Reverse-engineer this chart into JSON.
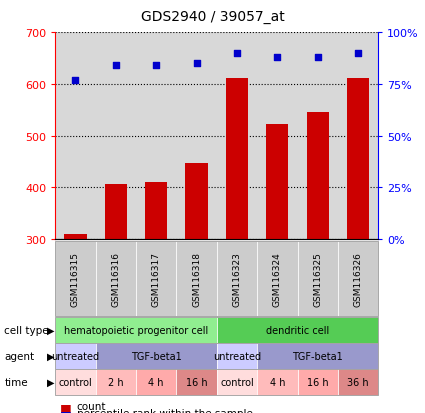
{
  "title": "GDS2940 / 39057_at",
  "samples": [
    "GSM116315",
    "GSM116316",
    "GSM116317",
    "GSM116318",
    "GSM116323",
    "GSM116324",
    "GSM116325",
    "GSM116326"
  ],
  "bar_values": [
    310,
    407,
    411,
    448,
    612,
    523,
    546,
    612
  ],
  "percentile_values": [
    77,
    84,
    84,
    85,
    90,
    88,
    88,
    90
  ],
  "ylim_left": [
    300,
    700
  ],
  "ylim_right": [
    0,
    100
  ],
  "yticks_left": [
    300,
    400,
    500,
    600,
    700
  ],
  "yticks_right": [
    0,
    25,
    50,
    75,
    100
  ],
  "bar_color": "#cc0000",
  "dot_color": "#0000cc",
  "bar_width": 0.55,
  "ax_facecolor": "#d8d8d8",
  "cell_type_row": {
    "label": "cell type",
    "groups": [
      {
        "text": "hematopoietic progenitor cell",
        "cols": [
          0,
          1,
          2,
          3
        ],
        "color": "#90ee90"
      },
      {
        "text": "dendritic cell",
        "cols": [
          4,
          5,
          6,
          7
        ],
        "color": "#55cc55"
      }
    ]
  },
  "agent_row": {
    "label": "agent",
    "groups": [
      {
        "text": "untreated",
        "cols": [
          0
        ],
        "color": "#ccccff"
      },
      {
        "text": "TGF-beta1",
        "cols": [
          1,
          2,
          3
        ],
        "color": "#9999cc"
      },
      {
        "text": "untreated",
        "cols": [
          4
        ],
        "color": "#ccccff"
      },
      {
        "text": "TGF-beta1",
        "cols": [
          5,
          6,
          7
        ],
        "color": "#9999cc"
      }
    ]
  },
  "time_row": {
    "label": "time",
    "groups": [
      {
        "text": "control",
        "cols": [
          0
        ],
        "color": "#ffdddd"
      },
      {
        "text": "2 h",
        "cols": [
          1
        ],
        "color": "#ffbbbb"
      },
      {
        "text": "4 h",
        "cols": [
          2
        ],
        "color": "#ffaaaa"
      },
      {
        "text": "16 h",
        "cols": [
          3
        ],
        "color": "#dd8888"
      },
      {
        "text": "control",
        "cols": [
          4
        ],
        "color": "#ffdddd"
      },
      {
        "text": "4 h",
        "cols": [
          5
        ],
        "color": "#ffbbbb"
      },
      {
        "text": "16 h",
        "cols": [
          6
        ],
        "color": "#ffaaaa"
      },
      {
        "text": "36 h",
        "cols": [
          7
        ],
        "color": "#dd8888"
      }
    ]
  },
  "legend_items": [
    {
      "color": "#cc0000",
      "label": "count"
    },
    {
      "color": "#0000cc",
      "label": "percentile rank within the sample"
    }
  ]
}
